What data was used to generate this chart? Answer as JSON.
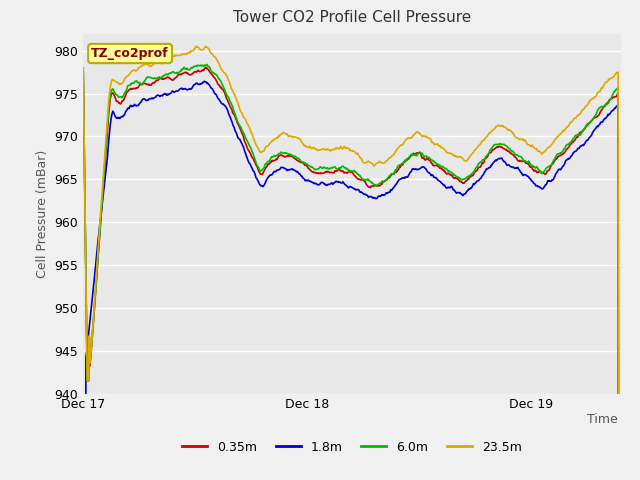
{
  "title": "Tower CO2 Profile Cell Pressure",
  "ylabel": "Cell Pressure (mBar)",
  "xlabel": "Time",
  "ylim": [
    940,
    982
  ],
  "yticks": [
    940,
    945,
    950,
    955,
    960,
    965,
    970,
    975,
    980
  ],
  "xtick_labels": [
    "Dec 17",
    "Dec 18",
    "Dec 19"
  ],
  "xtick_positions": [
    0.0,
    1.0,
    2.0
  ],
  "xlim": [
    0,
    2.4
  ],
  "legend_labels": [
    "0.35m",
    "1.8m",
    "6.0m",
    "23.5m"
  ],
  "legend_colors": [
    "#cc0000",
    "#0000cc",
    "#00bb00",
    "#ddaa00"
  ],
  "annotation_text": "TZ_co2prof",
  "annotation_bg": "#ffff99",
  "annotation_edge": "#bbaa00",
  "fig_bg_color": "#f0f0f0",
  "plot_bg_color": "#e8e8e8",
  "grid_color": "#ffffff",
  "line_width": 1.2
}
